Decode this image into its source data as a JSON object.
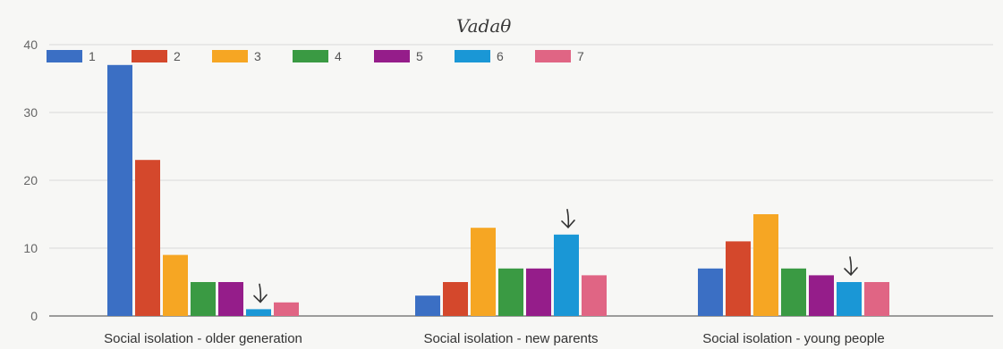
{
  "annotation_text": "Vadaθ",
  "chart_data": {
    "type": "bar",
    "categories": [
      "Social isolation - older generation",
      "Social isolation - new parents",
      "Social isolation - young people"
    ],
    "series": [
      {
        "name": "1",
        "color": "#3b6fc4",
        "values": [
          37,
          3,
          7
        ]
      },
      {
        "name": "2",
        "color": "#d4482c",
        "values": [
          23,
          5,
          11
        ]
      },
      {
        "name": "3",
        "color": "#f6a623",
        "values": [
          9,
          13,
          15
        ]
      },
      {
        "name": "4",
        "color": "#3a9a43",
        "values": [
          5,
          7,
          7
        ]
      },
      {
        "name": "5",
        "color": "#951d8a",
        "values": [
          5,
          7,
          6
        ]
      },
      {
        "name": "6",
        "color": "#1a97d6",
        "values": [
          1,
          12,
          5
        ]
      },
      {
        "name": "7",
        "color": "#e06584",
        "values": [
          2,
          6,
          5
        ]
      }
    ],
    "yticks": [
      0,
      10,
      20,
      30,
      40
    ],
    "ylim": [
      0,
      40
    ],
    "title": "",
    "xlabel": "",
    "ylabel": "",
    "grid": true,
    "legend_position": "top-left",
    "hand_arrows": [
      {
        "category_index": 0,
        "series_index": 5
      },
      {
        "category_index": 1,
        "series_index": 5
      },
      {
        "category_index": 2,
        "series_index": 5
      }
    ]
  }
}
